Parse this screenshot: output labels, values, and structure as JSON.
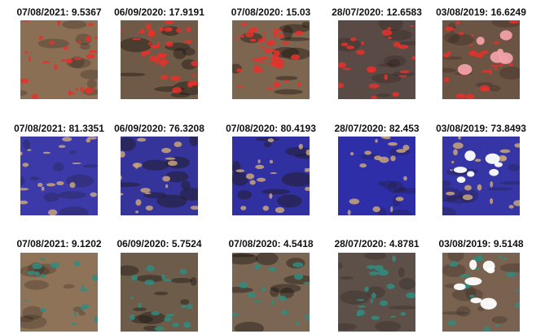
{
  "rows": [
    [
      "07/08/2021: 9.5367",
      "06/09/2020: 17.9191",
      "07/08/2020: 15.03",
      "28/07/2020: 12.6583",
      "03/08/2019: 16.6249"
    ],
    [
      "07/08/2021: 81.3351",
      "06/09/2020: 76.3208",
      "07/08/2020: 80.4193",
      "28/07/2020: 82.453",
      "03/08/2019: 73.8493"
    ],
    [
      "07/08/2021: 9.1202",
      "06/09/2020: 5.7524",
      "07/08/2020: 4.5418",
      "28/07/2020: 4.8781",
      "03/08/2019: 9.5148"
    ]
  ]
}
